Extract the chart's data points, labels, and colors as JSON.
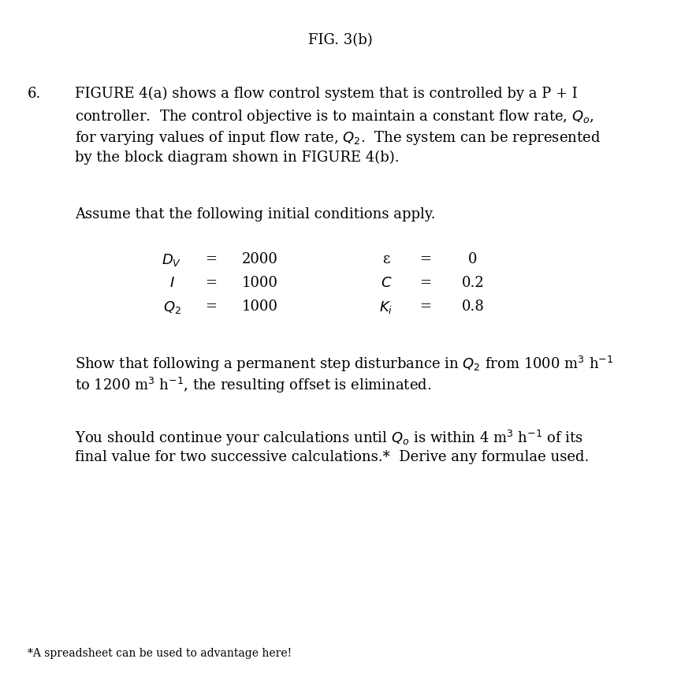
{
  "background_color": "#ffffff",
  "fig_title": "FIG. 3(b)",
  "question_number": "6.",
  "paragraph1_lines": [
    "FIGURE 4(a) shows a flow control system that is controlled by a P + I",
    "controller.  The control objective is to maintain a constant flow rate, $Q_o$,",
    "for varying values of input flow rate, $Q_2$.  The system can be represented",
    "by the block diagram shown in FIGURE 4(b)."
  ],
  "paragraph2": "Assume that the following initial conditions apply.",
  "table": {
    "left_labels": [
      "$D_V$",
      "$I$",
      "$Q_2$"
    ],
    "left_values": [
      "2000",
      "1000",
      "1000"
    ],
    "right_labels": [
      "ε",
      "$C$",
      "$K_i$"
    ],
    "right_values": [
      "0",
      "0.2",
      "0.8"
    ]
  },
  "paragraph3_lines": [
    "Show that following a permanent step disturbance in $Q_2$ from 1000 m$^3$ h$^{-1}$",
    "to 1200 m$^3$ h$^{-1}$, the resulting offset is eliminated."
  ],
  "paragraph4_lines": [
    "You should continue your calculations until $Q_o$ is within 4 m$^3$ h$^{-1}$ of its",
    "final value for two successive calculations.*  Derive any formulae used."
  ],
  "footnote": "*A spreadsheet can be used to advantage here!",
  "font_size_title": 13,
  "font_size_body": 13,
  "font_size_footnote": 10,
  "font_size_table": 13
}
